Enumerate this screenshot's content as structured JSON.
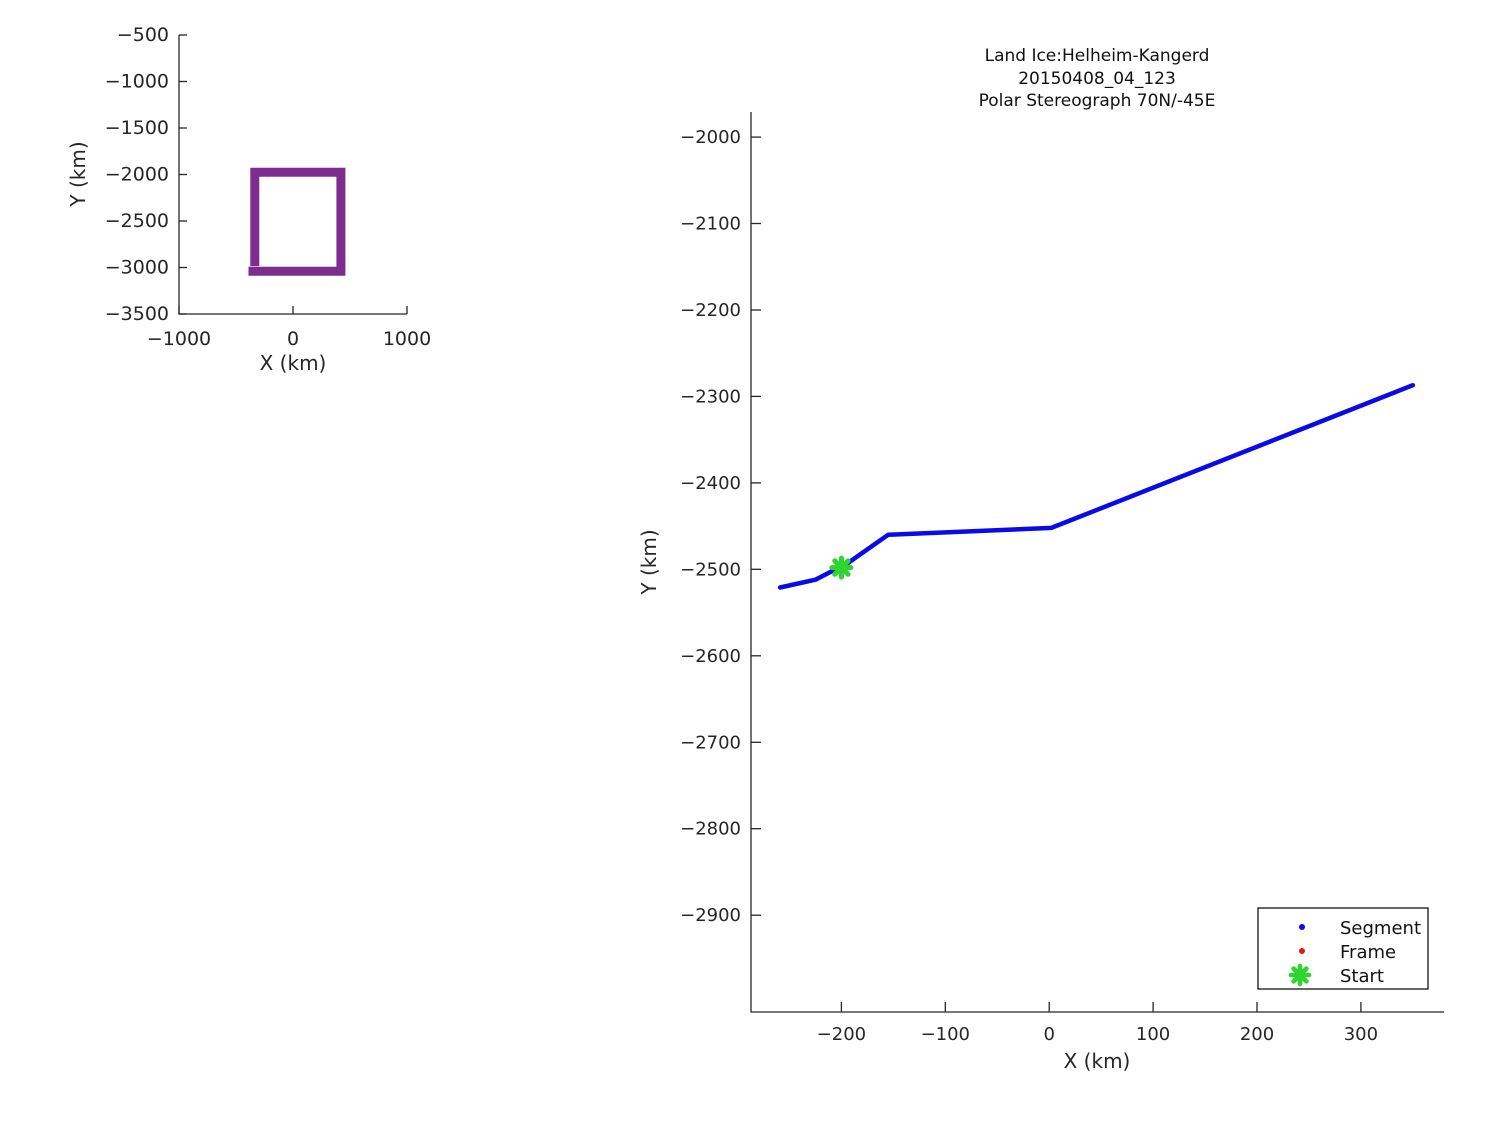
{
  "figure": {
    "background": "#ffffff",
    "text_color": "#262626"
  },
  "chart_data": [
    {
      "id": "overview",
      "type": "line",
      "title": "",
      "xlabel": "X (km)",
      "ylabel": "Y (km)",
      "xlim": [
        -1000,
        1000
      ],
      "ylim": [
        -3500,
        -500
      ],
      "xticks": [
        -1000,
        0,
        1000
      ],
      "yticks": [
        -500,
        -1000,
        -1500,
        -2000,
        -2500,
        -3000,
        -3500
      ],
      "grid": false,
      "series": [
        {
          "name": "coverage-outline",
          "color": "#7E2D8E",
          "linewidth": 9,
          "points": [
            [
              -335,
              -2985
            ],
            [
              -335,
              -1975
            ],
            [
              420,
              -1975
            ],
            [
              420,
              -3040
            ],
            [
              -390,
              -3040
            ]
          ]
        }
      ]
    },
    {
      "id": "main",
      "type": "line",
      "title_lines": [
        "Land Ice:Helheim-Kangerd",
        "20150408_04_123",
        "Polar Stereograph 70N/-45E"
      ],
      "xlabel": "X (km)",
      "ylabel": "Y (km)",
      "xlim": [
        -287,
        380
      ],
      "ylim": [
        -3012,
        -1971
      ],
      "xticks": [
        -200,
        -100,
        0,
        100,
        200,
        300
      ],
      "yticks": [
        -2000,
        -2100,
        -2200,
        -2300,
        -2400,
        -2500,
        -2600,
        -2700,
        -2800,
        -2900
      ],
      "grid": false,
      "series": [
        {
          "name": "segment-track",
          "color": "#0A0AE8",
          "linewidth": 4.5,
          "points": [
            [
              -259,
              -2521
            ],
            [
              -225,
              -2512
            ],
            [
              -209,
              -2502
            ],
            [
              -200,
              -2498
            ],
            [
              -155,
              -2460
            ],
            [
              2,
              -2452
            ],
            [
              350,
              -2287
            ]
          ]
        }
      ],
      "markers": [
        {
          "name": "start-marker",
          "shape": "asterisk",
          "color": "#2ED52E",
          "x": -200,
          "y": -2498,
          "size": 9.5
        }
      ],
      "legend": {
        "position": "bottom-right",
        "items": [
          {
            "label": "Segment",
            "marker": "dot",
            "color": "#0A0AE8"
          },
          {
            "label": "Frame",
            "marker": "dot",
            "color": "#E51515"
          },
          {
            "label": "Start",
            "marker": "asterisk",
            "color": "#2ED52E"
          }
        ]
      }
    }
  ]
}
